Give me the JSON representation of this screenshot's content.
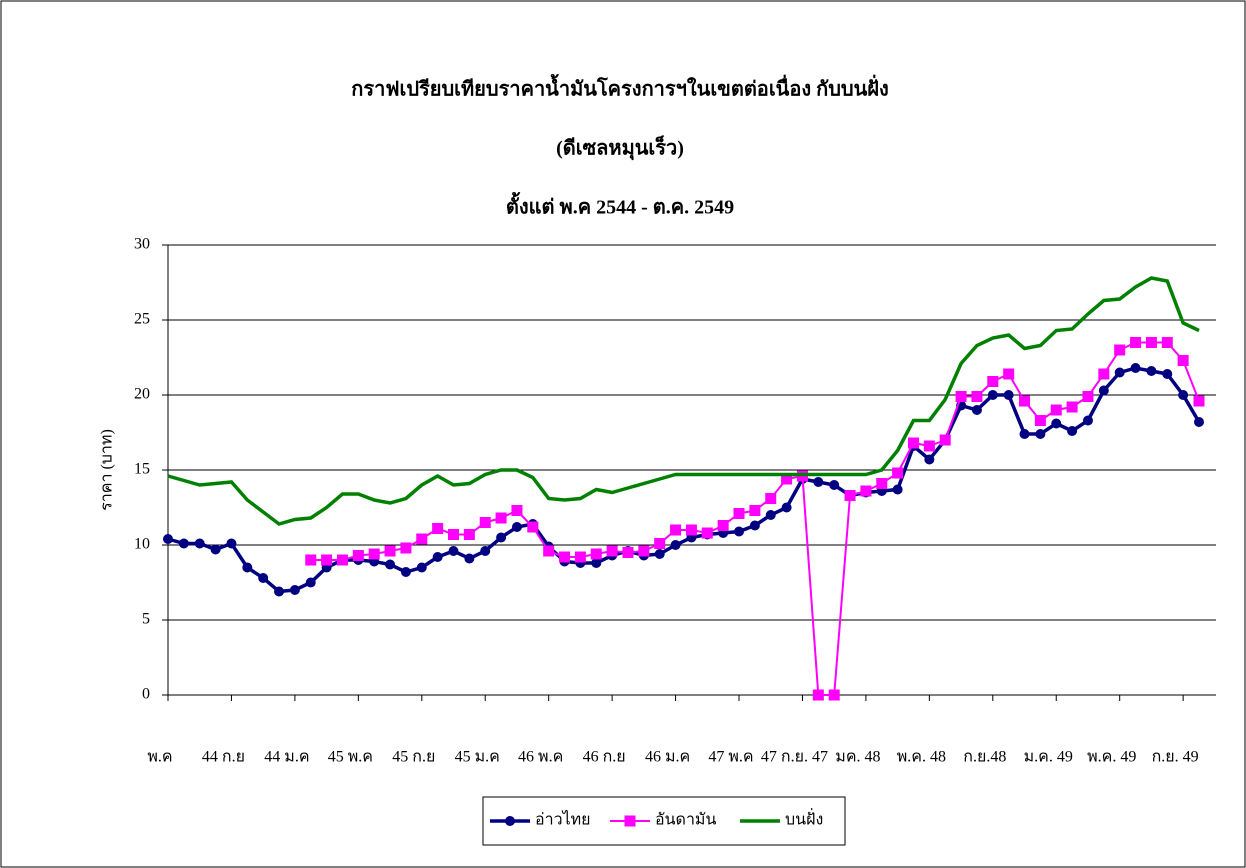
{
  "chart_data": {
    "type": "line",
    "title": "กราฟเปรียบเทียบราคาน้ำมันโครงการฯในเขตต่อเนื่อง กับบนฝั่ง",
    "subtitle": "(ดีเซลหมุนเร็ว)",
    "period": "ตั้งแต่ พ.ค 2544 - ต.ค. 2549",
    "y_label": "ราคา (บาท)",
    "categories": [
      "พ.ค",
      null,
      null,
      null,
      "44 ก.ย",
      null,
      null,
      null,
      "44 ม.ค",
      null,
      null,
      null,
      "45 พ.ค",
      null,
      null,
      null,
      "45 ก.ย",
      null,
      null,
      null,
      "45 ม.ค",
      null,
      null,
      null,
      "46 พ.ค",
      null,
      null,
      null,
      "46 ก.ย",
      null,
      null,
      null,
      "46 ม.ค",
      null,
      null,
      null,
      "47 พ.ค",
      null,
      null,
      null,
      "47 ก.ย. 47",
      null,
      null,
      null,
      "มค. 48",
      null,
      null,
      null,
      "พ.ค. 48",
      null,
      null,
      null,
      "ก.ย.48",
      null,
      null,
      null,
      "ม.ค. 49",
      null,
      null,
      null,
      "พ.ค. 49",
      null,
      null,
      null,
      "ก.ย. 49",
      null
    ],
    "series": [
      {
        "name": "อ่าวไทย",
        "color": "#000080",
        "marker": "circle",
        "values": [
          10.4,
          10.1,
          10.1,
          9.7,
          10.1,
          8.5,
          7.8,
          6.9,
          7.0,
          7.5,
          8.5,
          9.0,
          9.0,
          8.9,
          8.7,
          8.2,
          8.5,
          9.2,
          9.6,
          9.1,
          9.6,
          10.5,
          11.2,
          11.4,
          9.9,
          8.9,
          8.8,
          8.8,
          9.3,
          9.6,
          9.3,
          9.4,
          10.0,
          10.5,
          10.7,
          10.8,
          10.9,
          11.3,
          12.0,
          12.5,
          14.4,
          14.2,
          14.0,
          13.3,
          13.5,
          13.6,
          13.7,
          16.6,
          15.7,
          17.0,
          19.3,
          19.0,
          20.0,
          20.0,
          17.4,
          17.4,
          18.1,
          17.6,
          18.3,
          20.3,
          21.5,
          21.8,
          21.6,
          21.4,
          20.0,
          18.2
        ]
      },
      {
        "name": "อันดามัน",
        "color": "#ff00ff",
        "marker": "square",
        "values": [
          null,
          null,
          null,
          null,
          null,
          null,
          null,
          null,
          null,
          9.0,
          9.0,
          9.0,
          9.3,
          9.4,
          9.6,
          9.8,
          10.4,
          11.1,
          10.7,
          10.7,
          11.5,
          11.8,
          12.3,
          11.2,
          9.6,
          9.2,
          9.2,
          9.4,
          9.6,
          9.5,
          9.6,
          10.1,
          11.0,
          11.0,
          10.8,
          11.3,
          12.1,
          12.3,
          13.1,
          14.4,
          14.6,
          0,
          0,
          13.3,
          13.6,
          14.1,
          14.8,
          16.8,
          16.6,
          17.0,
          19.9,
          19.9,
          20.9,
          21.4,
          19.6,
          18.3,
          19.0,
          19.2,
          19.9,
          21.4,
          23.0,
          23.5,
          23.5,
          23.5,
          22.3,
          19.6
        ]
      },
      {
        "name": "บนฝั่ง",
        "color": "#008000",
        "marker": "none",
        "values": [
          14.6,
          14.3,
          14.0,
          14.1,
          14.2,
          13.0,
          12.2,
          11.4,
          11.7,
          11.8,
          12.5,
          13.4,
          13.4,
          13.0,
          12.8,
          13.1,
          14.0,
          14.6,
          14.0,
          14.1,
          14.7,
          15.0,
          15.0,
          14.5,
          13.1,
          13.0,
          13.1,
          13.7,
          13.5,
          13.8,
          14.1,
          14.4,
          14.7,
          14.7,
          14.7,
          14.7,
          14.7,
          14.7,
          14.7,
          14.7,
          14.7,
          14.7,
          14.7,
          14.7,
          14.7,
          15.0,
          16.3,
          18.3,
          18.3,
          19.7,
          22.1,
          23.3,
          23.8,
          24.0,
          23.1,
          23.3,
          24.3,
          24.4,
          25.4,
          26.3,
          26.4,
          27.2,
          27.8,
          27.6,
          24.8,
          24.3
        ]
      }
    ],
    "ylim": [
      0,
      30
    ],
    "yticks": [
      0,
      5,
      10,
      15,
      20,
      25,
      30
    ],
    "grid": true,
    "legend": "bottom"
  }
}
